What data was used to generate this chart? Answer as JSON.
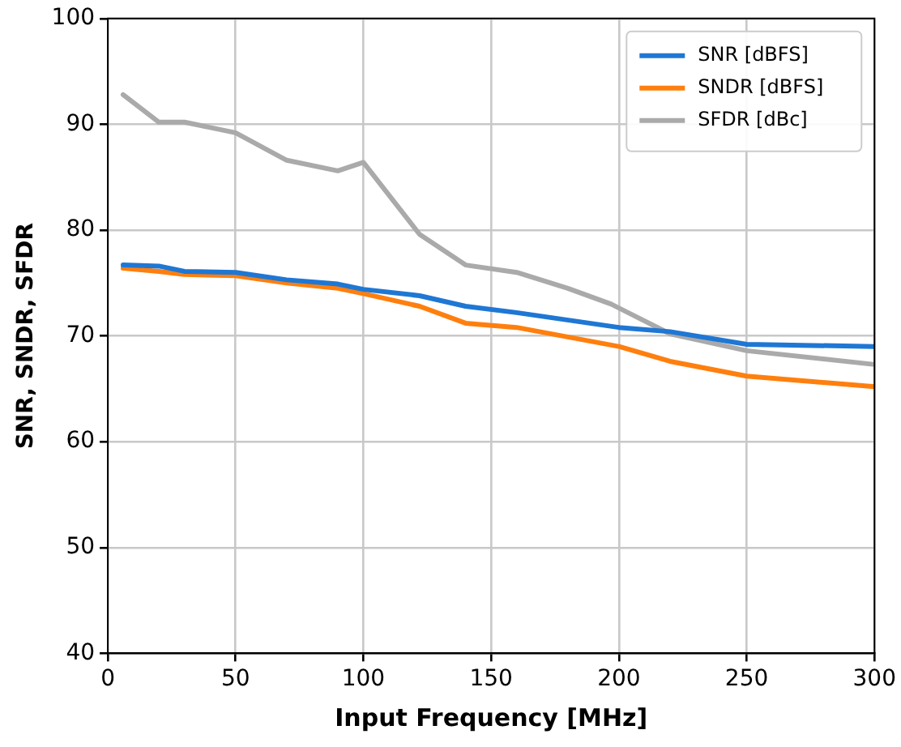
{
  "chart_data": {
    "type": "line",
    "xlabel": "Input Frequency [MHz]",
    "ylabel": "SNR, SNDR, SFDR",
    "x": [
      6,
      20,
      30,
      50,
      70,
      90,
      100,
      122,
      140,
      160,
      200,
      220,
      250,
      300
    ],
    "series": [
      {
        "name": "SNR [dBFS]",
        "color": "#1f77d4",
        "values": [
          76.7,
          76.6,
          76.1,
          76.0,
          75.3,
          74.9,
          74.4,
          73.8,
          72.8,
          72.2,
          70.8,
          70.4,
          69.2,
          69.0
        ]
      },
      {
        "name": "SNDR [dBFS]",
        "color": "#ff7f0e",
        "values": [
          76.4,
          76.1,
          75.8,
          75.7,
          75.0,
          74.5,
          74.0,
          72.8,
          71.2,
          70.8,
          69.0,
          67.6,
          66.2,
          65.2
        ]
      },
      {
        "name": "SFDR [dBc]",
        "color": "#aaaaaa",
        "x": [
          6,
          20,
          30,
          50,
          70,
          90,
          100,
          122,
          140,
          160,
          180,
          197,
          220,
          250,
          300
        ],
        "values": [
          92.8,
          90.2,
          90.2,
          89.2,
          86.6,
          85.6,
          86.4,
          79.6,
          76.7,
          76.0,
          74.5,
          73.0,
          70.2,
          68.6,
          67.3
        ]
      }
    ],
    "xlim": [
      0,
      300
    ],
    "xticks": [
      0,
      50,
      100,
      150,
      200,
      250,
      300
    ],
    "ylim": [
      40,
      100
    ],
    "yticks": [
      40,
      50,
      60,
      70,
      80,
      90,
      100
    ],
    "grid": true,
    "legend": "top right",
    "marker": "none",
    "line_style": "solid"
  }
}
